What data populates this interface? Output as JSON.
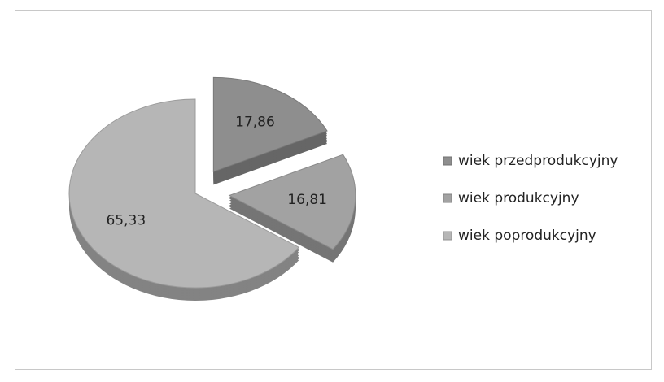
{
  "chart_data": {
    "type": "pie",
    "categories": [
      "wiek przedprodukcyjny",
      "wiek produkcyjny",
      "wiek poprodukcyjny"
    ],
    "values": [
      17.86,
      16.81,
      65.33
    ],
    "value_labels": [
      "17,86",
      "16,81",
      "65,33"
    ],
    "colors": [
      "#8e8e8e",
      "#a2a2a2",
      "#b6b6b6"
    ],
    "exploded": [
      true,
      true,
      false
    ],
    "legend": "right"
  }
}
